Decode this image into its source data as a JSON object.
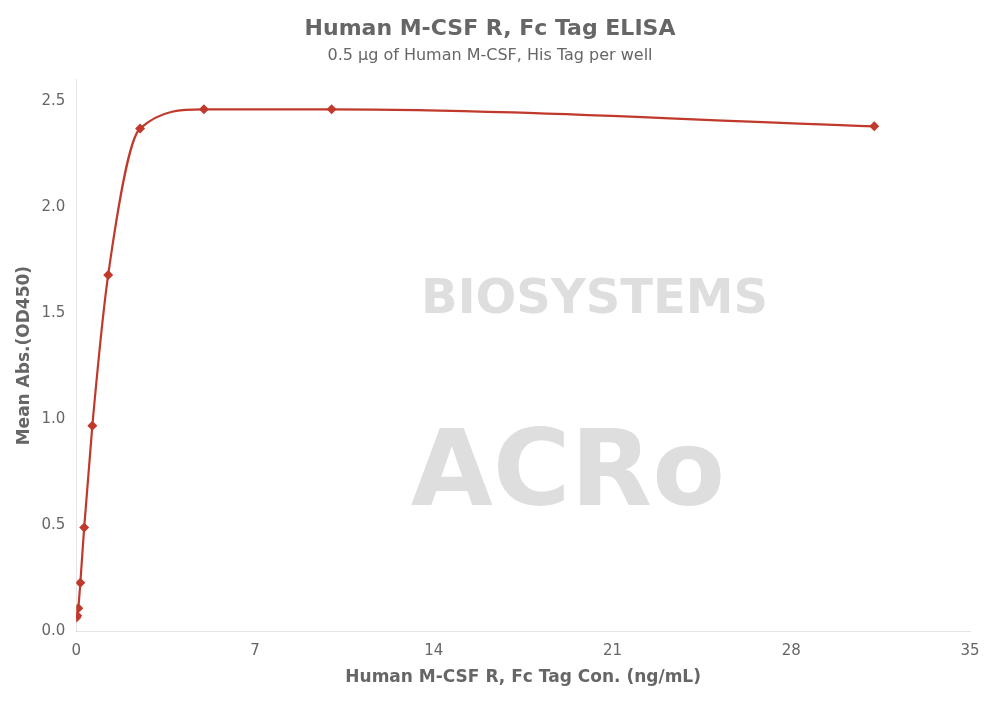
{
  "chart_data": {
    "type": "scatter",
    "title": "Human M-CSF R, Fc Tag ELISA",
    "subtitle": "0.5 μg of Human M-CSF, His Tag per well",
    "x_label": "Human M-CSF R, Fc Tag Con. (ng/mL)",
    "y_label": "Mean Abs.(OD450)",
    "x": [
      0.0,
      0.04,
      0.08,
      0.16,
      0.31,
      0.63,
      1.25,
      2.5,
      5.0,
      10.0,
      31.25
    ],
    "series": [
      {
        "values": [
          0.065,
          0.075,
          0.11,
          0.23,
          0.49,
          0.97,
          1.68,
          2.37,
          2.46,
          2.46,
          2.38
        ],
        "color": "#C0392B",
        "marker": "diamond",
        "line_style": "solid"
      }
    ],
    "xlim": [
      0,
      35
    ],
    "xticks": [
      0,
      7,
      14,
      21,
      28,
      35
    ],
    "ylim": [
      0,
      2.6
    ],
    "yticks": [
      {
        "value": 0,
        "label": "0.0"
      },
      0.5,
      {
        "value": 1,
        "label": "1.0"
      },
      1.5,
      {
        "value": 2,
        "label": "2.0"
      },
      2.5
    ],
    "annotations": [
      "BIOSYSTEMS",
      "ACRo"
    ],
    "grid": false
  }
}
